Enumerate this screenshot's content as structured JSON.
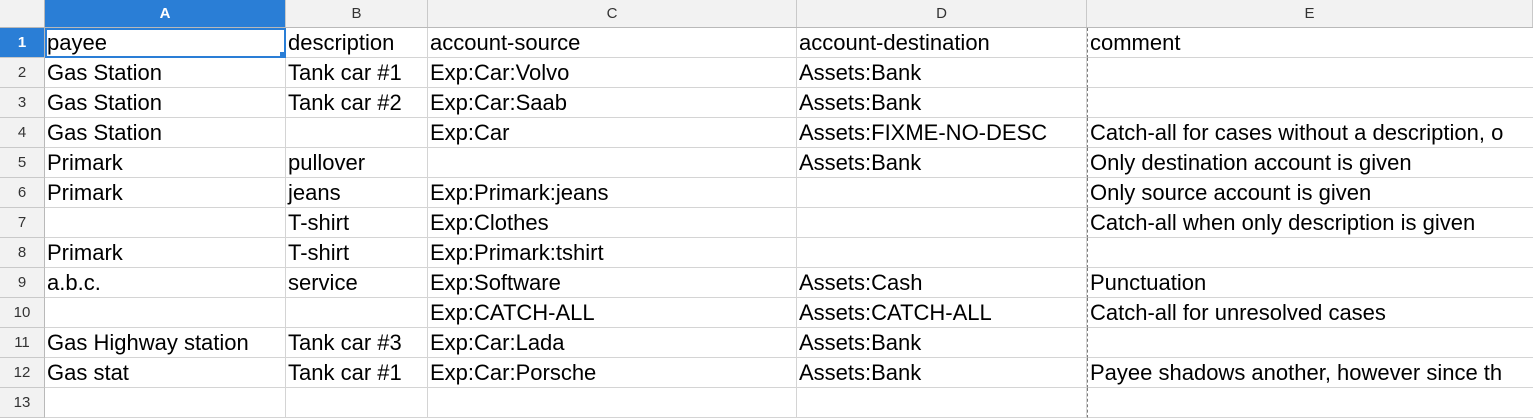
{
  "columns": [
    "A",
    "B",
    "C",
    "D",
    "E"
  ],
  "rows": [
    {
      "num": "1",
      "cells": [
        "payee",
        "description",
        "account-source",
        "account-destination",
        "comment"
      ]
    },
    {
      "num": "2",
      "cells": [
        "Gas Station",
        "Tank car #1",
        "Exp:Car:Volvo",
        "Assets:Bank",
        ""
      ]
    },
    {
      "num": "3",
      "cells": [
        "Gas Station",
        "Tank car #2",
        "Exp:Car:Saab",
        "Assets:Bank",
        ""
      ]
    },
    {
      "num": "4",
      "cells": [
        "Gas Station",
        "",
        "Exp:Car",
        "Assets:FIXME-NO-DESC",
        "Catch-all for cases without a description, o"
      ]
    },
    {
      "num": "5",
      "cells": [
        "Primark",
        "pullover",
        "",
        "Assets:Bank",
        "Only destination account is given"
      ]
    },
    {
      "num": "6",
      "cells": [
        "Primark",
        "jeans",
        "Exp:Primark:jeans",
        "",
        "Only source account is given"
      ]
    },
    {
      "num": "7",
      "cells": [
        "",
        "T-shirt",
        "Exp:Clothes",
        "",
        "Catch-all when only description is given"
      ]
    },
    {
      "num": "8",
      "cells": [
        "Primark",
        "T-shirt",
        "Exp:Primark:tshirt",
        "",
        ""
      ]
    },
    {
      "num": "9",
      "cells": [
        "a.b.c.",
        "service",
        "Exp:Software",
        "Assets:Cash",
        "Punctuation"
      ]
    },
    {
      "num": "10",
      "cells": [
        "",
        "",
        "Exp:CATCH-ALL",
        "Assets:CATCH-ALL",
        "Catch-all for unresolved cases"
      ]
    },
    {
      "num": "11",
      "cells": [
        "Gas Highway station",
        "Tank car #3",
        "Exp:Car:Lada",
        "Assets:Bank",
        ""
      ]
    },
    {
      "num": "12",
      "cells": [
        "Gas stat",
        "Tank car #1",
        "Exp:Car:Porsche",
        "Assets:Bank",
        "Payee shadows another, however since th"
      ]
    },
    {
      "num": "13",
      "cells": [
        "",
        "",
        "",
        "",
        ""
      ]
    }
  ],
  "selection": {
    "column": "A",
    "row": "1"
  },
  "colors": {
    "selection": "#2a7ed6",
    "header_bg": "#f2f2f2",
    "grid": "#d4d4d4"
  }
}
